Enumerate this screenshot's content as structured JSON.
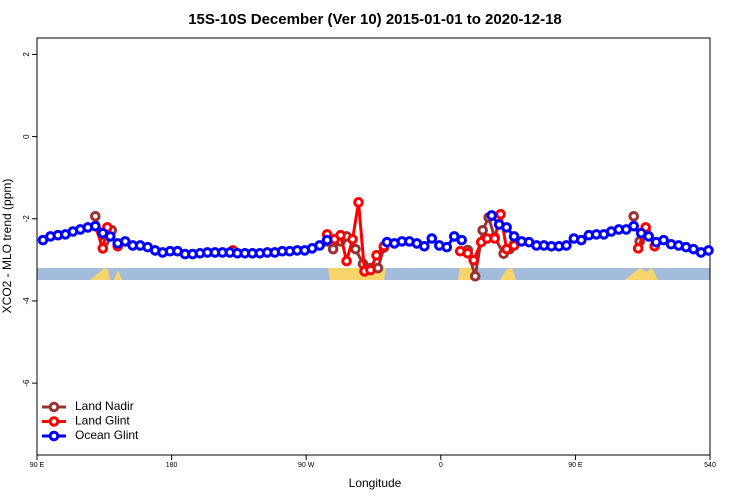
{
  "chart_data": {
    "type": "line",
    "title": "15S-10S December (Ver 10)   2015-01-01 to 2020-12-18",
    "x_label": "Longitude",
    "y_label": "XCO2 - MLO trend (ppm)",
    "xlim": [
      90,
      540
    ],
    "xticks": [
      {
        "value": 90,
        "label": "90 E"
      },
      180,
      {
        "value": 270,
        "label": "90 W"
      },
      {
        "value": 360,
        "label": "0"
      },
      {
        "value": 450,
        "label": "90 E"
      },
      540
    ],
    "ylim": [
      -7.75,
      2.4
    ],
    "yticks": [
      2,
      0,
      -2,
      -4,
      -6
    ],
    "legend": "bottom-left",
    "series": [
      {
        "name": "Land Nadir",
        "color": "#993333",
        "x": [
          129,
          135,
          140,
          200,
          284,
          288,
          293,
          297,
          303,
          308,
          313,
          318,
          322,
          350,
          378,
          383,
          388,
          392,
          396,
          402,
          406,
          409,
          450,
          489,
          493,
          497
        ],
        "values": [
          -1.94,
          -2.55,
          -2.28,
          null,
          -2.55,
          -2.74,
          -2.55,
          -2.43,
          -2.74,
          -3.1,
          -3.2,
          -3.2,
          -2.7,
          null,
          -2.76,
          -3.4,
          -2.28,
          -1.97,
          -2.45,
          -2.85,
          -2.74,
          -2.62,
          null,
          -1.94,
          -2.55,
          -2.28
        ]
      },
      {
        "name": "Land Glint",
        "color": "#ff0000",
        "x": [
          129,
          134,
          137,
          144,
          180,
          221,
          250,
          284,
          289,
          293,
          297,
          301,
          305,
          309,
          313,
          317,
          322,
          350,
          373,
          378,
          382,
          387,
          391,
          396,
          400,
          404,
          409,
          450,
          492,
          497,
          503
        ],
        "values": [
          -2.18,
          -2.72,
          -2.21,
          -2.67,
          null,
          -2.77,
          null,
          -2.38,
          -2.5,
          -2.4,
          -3.03,
          -2.5,
          -1.6,
          -3.28,
          -3.25,
          -2.89,
          -2.67,
          null,
          -2.79,
          -2.84,
          -3.01,
          -2.57,
          -2.48,
          -2.48,
          -1.89,
          -2.74,
          -2.65,
          null,
          -2.72,
          -2.21,
          -2.67
        ]
      },
      {
        "name": "Ocean Glint",
        "color": "#0000ff",
        "x": [
          94,
          99,
          104,
          109,
          114,
          119,
          124,
          129,
          134,
          139,
          144,
          149,
          154,
          159,
          164,
          169,
          174,
          179,
          184,
          189,
          194,
          199,
          204,
          209,
          214,
          219,
          224,
          229,
          234,
          239,
          244,
          249,
          254,
          259,
          264,
          269,
          274,
          279,
          284,
          300,
          324,
          329,
          334,
          339,
          344,
          349,
          354,
          359,
          364,
          369,
          374,
          385,
          394,
          399,
          404,
          409,
          414,
          419,
          424,
          429,
          434,
          439,
          444,
          449,
          454,
          459,
          464,
          469,
          474,
          479,
          484,
          489,
          494,
          499,
          504,
          509,
          514,
          519,
          524,
          529,
          534,
          539
        ],
        "values": [
          -2.52,
          -2.43,
          -2.4,
          -2.38,
          -2.31,
          -2.26,
          -2.21,
          -2.18,
          -2.35,
          -2.43,
          -2.6,
          -2.55,
          -2.65,
          -2.65,
          -2.69,
          -2.77,
          -2.82,
          -2.79,
          -2.79,
          -2.86,
          -2.86,
          -2.84,
          -2.82,
          -2.82,
          -2.82,
          -2.82,
          -2.84,
          -2.84,
          -2.84,
          -2.84,
          -2.82,
          -2.82,
          -2.79,
          -2.79,
          -2.77,
          -2.77,
          -2.72,
          -2.65,
          -2.52,
          null,
          -2.57,
          -2.6,
          -2.55,
          -2.55,
          -2.6,
          -2.67,
          -2.48,
          -2.65,
          -2.69,
          -2.43,
          -2.52,
          null,
          -1.92,
          -2.14,
          -2.21,
          -2.43,
          -2.55,
          -2.57,
          -2.65,
          -2.65,
          -2.67,
          -2.67,
          -2.65,
          -2.48,
          -2.52,
          -2.4,
          -2.38,
          -2.38,
          -2.31,
          -2.26,
          -2.26,
          -2.18,
          -2.35,
          -2.43,
          -2.57,
          -2.52,
          -2.62,
          -2.65,
          -2.69,
          -2.74,
          -2.82,
          -2.77
        ]
      }
    ]
  }
}
